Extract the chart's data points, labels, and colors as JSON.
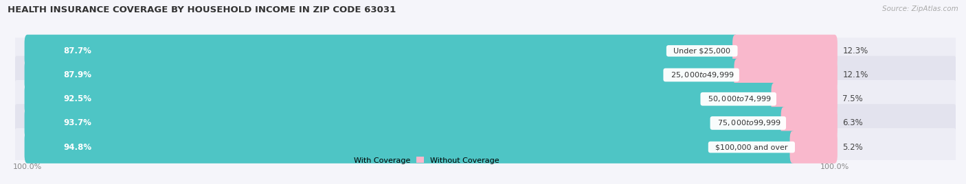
{
  "title": "HEALTH INSURANCE COVERAGE BY HOUSEHOLD INCOME IN ZIP CODE 63031",
  "source": "Source: ZipAtlas.com",
  "categories": [
    "Under $25,000",
    "$25,000 to $49,999",
    "$50,000 to $74,999",
    "$75,000 to $99,999",
    "$100,000 and over"
  ],
  "with_coverage": [
    87.7,
    87.9,
    92.5,
    93.7,
    94.8
  ],
  "without_coverage": [
    12.3,
    12.1,
    7.5,
    6.3,
    5.2
  ],
  "with_coverage_color": "#4ec5c5",
  "without_coverage_color": "#f07098",
  "without_coverage_color_light": "#f9b8cc",
  "row_bg_color_odd": "#ededf5",
  "row_bg_color_even": "#e3e3ee",
  "title_fontsize": 9.5,
  "label_fontsize": 8.5,
  "pct_fontsize": 8.5,
  "cat_fontsize": 8.0,
  "tick_fontsize": 8.0,
  "source_fontsize": 7.5,
  "legend_fontsize": 8.0,
  "bar_height": 0.65,
  "figsize": [
    14.06,
    2.69
  ],
  "dpi": 100,
  "xlim_left": -1.5,
  "xlim_right": 115,
  "bg_color": "#f5f5fa"
}
